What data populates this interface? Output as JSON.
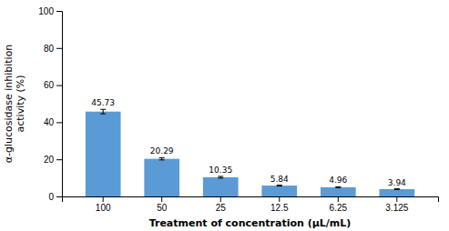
{
  "chart_data": {
    "type": "bar",
    "categories": [
      "100",
      "50",
      "25",
      "12.5",
      "6.25",
      "3.125"
    ],
    "values": [
      45.73,
      20.29,
      10.35,
      5.84,
      4.96,
      3.94
    ],
    "errors": [
      1.2,
      0.6,
      0.45,
      0.25,
      0.2,
      0.18
    ],
    "color": "#5b9bd5",
    "xlabel": "Treatment of concentration (μL/mL)",
    "ylabel": "α-glucosidase inhibition\nactivity (%)",
    "ylim": [
      0,
      100
    ],
    "yticks": [
      0,
      20,
      40,
      60,
      80,
      100
    ],
    "grid": false,
    "data_labels": true
  }
}
